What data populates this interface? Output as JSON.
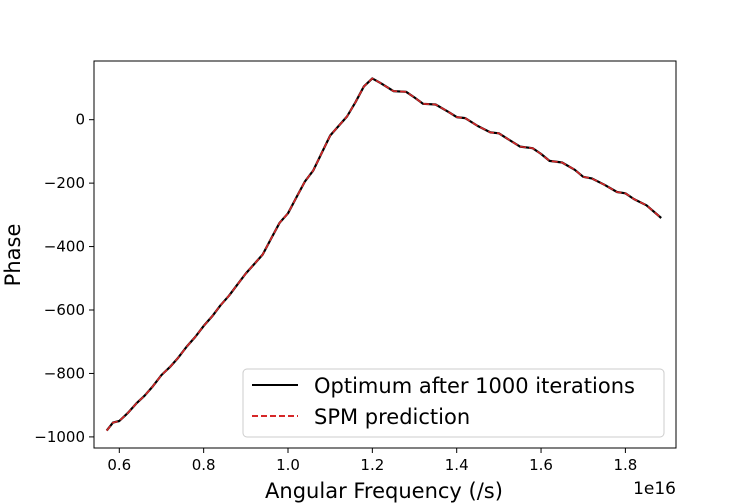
{
  "chart_data": {
    "type": "line",
    "title": "",
    "xlabel": "Angular Frequency (/s)",
    "ylabel": "Phase",
    "x_offset_label": "1e16",
    "xlim": [
      0.54,
      1.92
    ],
    "ylim": [
      -1035,
      185
    ],
    "x_ticks": [
      0.6,
      0.8,
      1.0,
      1.2,
      1.4,
      1.6,
      1.8
    ],
    "x_tick_labels": [
      "0.6",
      "0.8",
      "1.0",
      "1.2",
      "1.4",
      "1.6",
      "1.8"
    ],
    "y_ticks": [
      -1000,
      -800,
      -600,
      -400,
      -200,
      0
    ],
    "y_tick_labels": [
      "−1000",
      "−800",
      "−600",
      "−400",
      "−200",
      "0"
    ],
    "grid": false,
    "legend_position": "lower-right",
    "series": [
      {
        "name": "Optimum after 1000 iterations",
        "color": "#000000",
        "style": "solid",
        "x": [
          0.57,
          0.585,
          0.6,
          0.62,
          0.64,
          0.66,
          0.68,
          0.7,
          0.72,
          0.74,
          0.76,
          0.78,
          0.8,
          0.82,
          0.84,
          0.86,
          0.88,
          0.9,
          0.92,
          0.94,
          0.96,
          0.98,
          1.0,
          1.02,
          1.04,
          1.06,
          1.08,
          1.1,
          1.12,
          1.14,
          1.16,
          1.18,
          1.2,
          1.22,
          1.25,
          1.28,
          1.3,
          1.32,
          1.35,
          1.38,
          1.4,
          1.42,
          1.45,
          1.48,
          1.5,
          1.52,
          1.55,
          1.58,
          1.6,
          1.62,
          1.65,
          1.68,
          1.7,
          1.72,
          1.75,
          1.78,
          1.8,
          1.82,
          1.85,
          1.885
        ],
        "y": [
          -980,
          -955,
          -950,
          -925,
          -895,
          -870,
          -840,
          -805,
          -780,
          -750,
          -715,
          -685,
          -650,
          -620,
          -585,
          -555,
          -520,
          -485,
          -455,
          -425,
          -375,
          -325,
          -295,
          -245,
          -195,
          -160,
          -105,
          -50,
          -20,
          10,
          55,
          105,
          130,
          115,
          90,
          88,
          70,
          50,
          48,
          25,
          8,
          5,
          -20,
          -40,
          -43,
          -60,
          -85,
          -90,
          -108,
          -130,
          -135,
          -158,
          -180,
          -185,
          -205,
          -228,
          -232,
          -250,
          -270,
          -310
        ]
      },
      {
        "name": "SPM prediction",
        "color": "#d62728",
        "style": "dashed",
        "x": [
          0.57,
          0.585,
          0.6,
          0.62,
          0.64,
          0.66,
          0.68,
          0.7,
          0.72,
          0.74,
          0.76,
          0.78,
          0.8,
          0.82,
          0.84,
          0.86,
          0.88,
          0.9,
          0.92,
          0.94,
          0.96,
          0.98,
          1.0,
          1.02,
          1.04,
          1.06,
          1.08,
          1.1,
          1.12,
          1.14,
          1.16,
          1.18,
          1.2,
          1.22,
          1.25,
          1.28,
          1.3,
          1.32,
          1.35,
          1.38,
          1.4,
          1.42,
          1.45,
          1.48,
          1.5,
          1.52,
          1.55,
          1.58,
          1.6,
          1.62,
          1.65,
          1.68,
          1.7,
          1.72,
          1.75,
          1.78,
          1.8,
          1.82,
          1.85,
          1.885
        ],
        "y": [
          -980,
          -955,
          -950,
          -925,
          -895,
          -870,
          -840,
          -805,
          -780,
          -750,
          -715,
          -685,
          -650,
          -620,
          -585,
          -555,
          -520,
          -485,
          -455,
          -425,
          -375,
          -325,
          -295,
          -245,
          -195,
          -160,
          -105,
          -50,
          -20,
          10,
          55,
          105,
          130,
          115,
          90,
          88,
          70,
          50,
          48,
          25,
          8,
          5,
          -20,
          -40,
          -43,
          -60,
          -85,
          -90,
          -108,
          -130,
          -135,
          -158,
          -180,
          -185,
          -205,
          -228,
          -232,
          -250,
          -270,
          -310
        ]
      }
    ]
  }
}
